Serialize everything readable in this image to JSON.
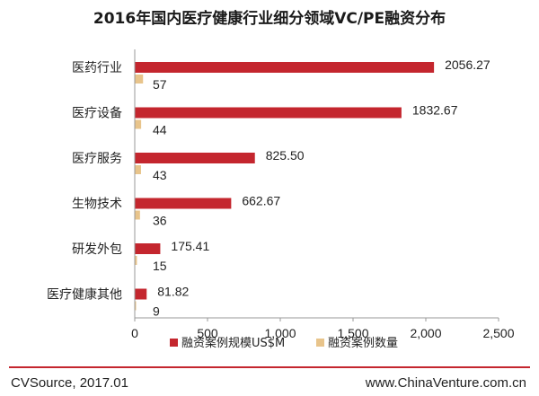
{
  "chart_data": {
    "type": "bar",
    "orientation": "horizontal",
    "title": "2016年国内医疗健康行业细分领域VC/PE融资分布",
    "categories": [
      "医药行业",
      "医疗设备",
      "医疗服务",
      "生物技术",
      "研发外包",
      "医疗健康其他"
    ],
    "series": [
      {
        "name": "融资案例规模US$M",
        "color": "#c4262e",
        "values": [
          2056.27,
          1832.67,
          825.5,
          662.67,
          175.41,
          81.82
        ],
        "labels": [
          "2056.27",
          "1832.67",
          "825.50",
          "662.67",
          "175.41",
          "81.82"
        ]
      },
      {
        "name": "融资案例数量",
        "color": "#e8c48b",
        "values": [
          57,
          44,
          43,
          36,
          15,
          9
        ],
        "labels": [
          "57",
          "44",
          "43",
          "36",
          "15",
          "9"
        ]
      }
    ],
    "xlim": [
      0,
      2500
    ],
    "xticks": [
      0,
      500,
      1000,
      1500,
      2000,
      2500
    ],
    "xtick_labels": [
      "0",
      "500",
      "1,000",
      "1,500",
      "2,000",
      "2,500"
    ],
    "legend_position": "bottom",
    "grid": false
  },
  "footer": {
    "source": "CVSource, 2017.01",
    "site": "www.ChinaVenture.com.cn"
  }
}
